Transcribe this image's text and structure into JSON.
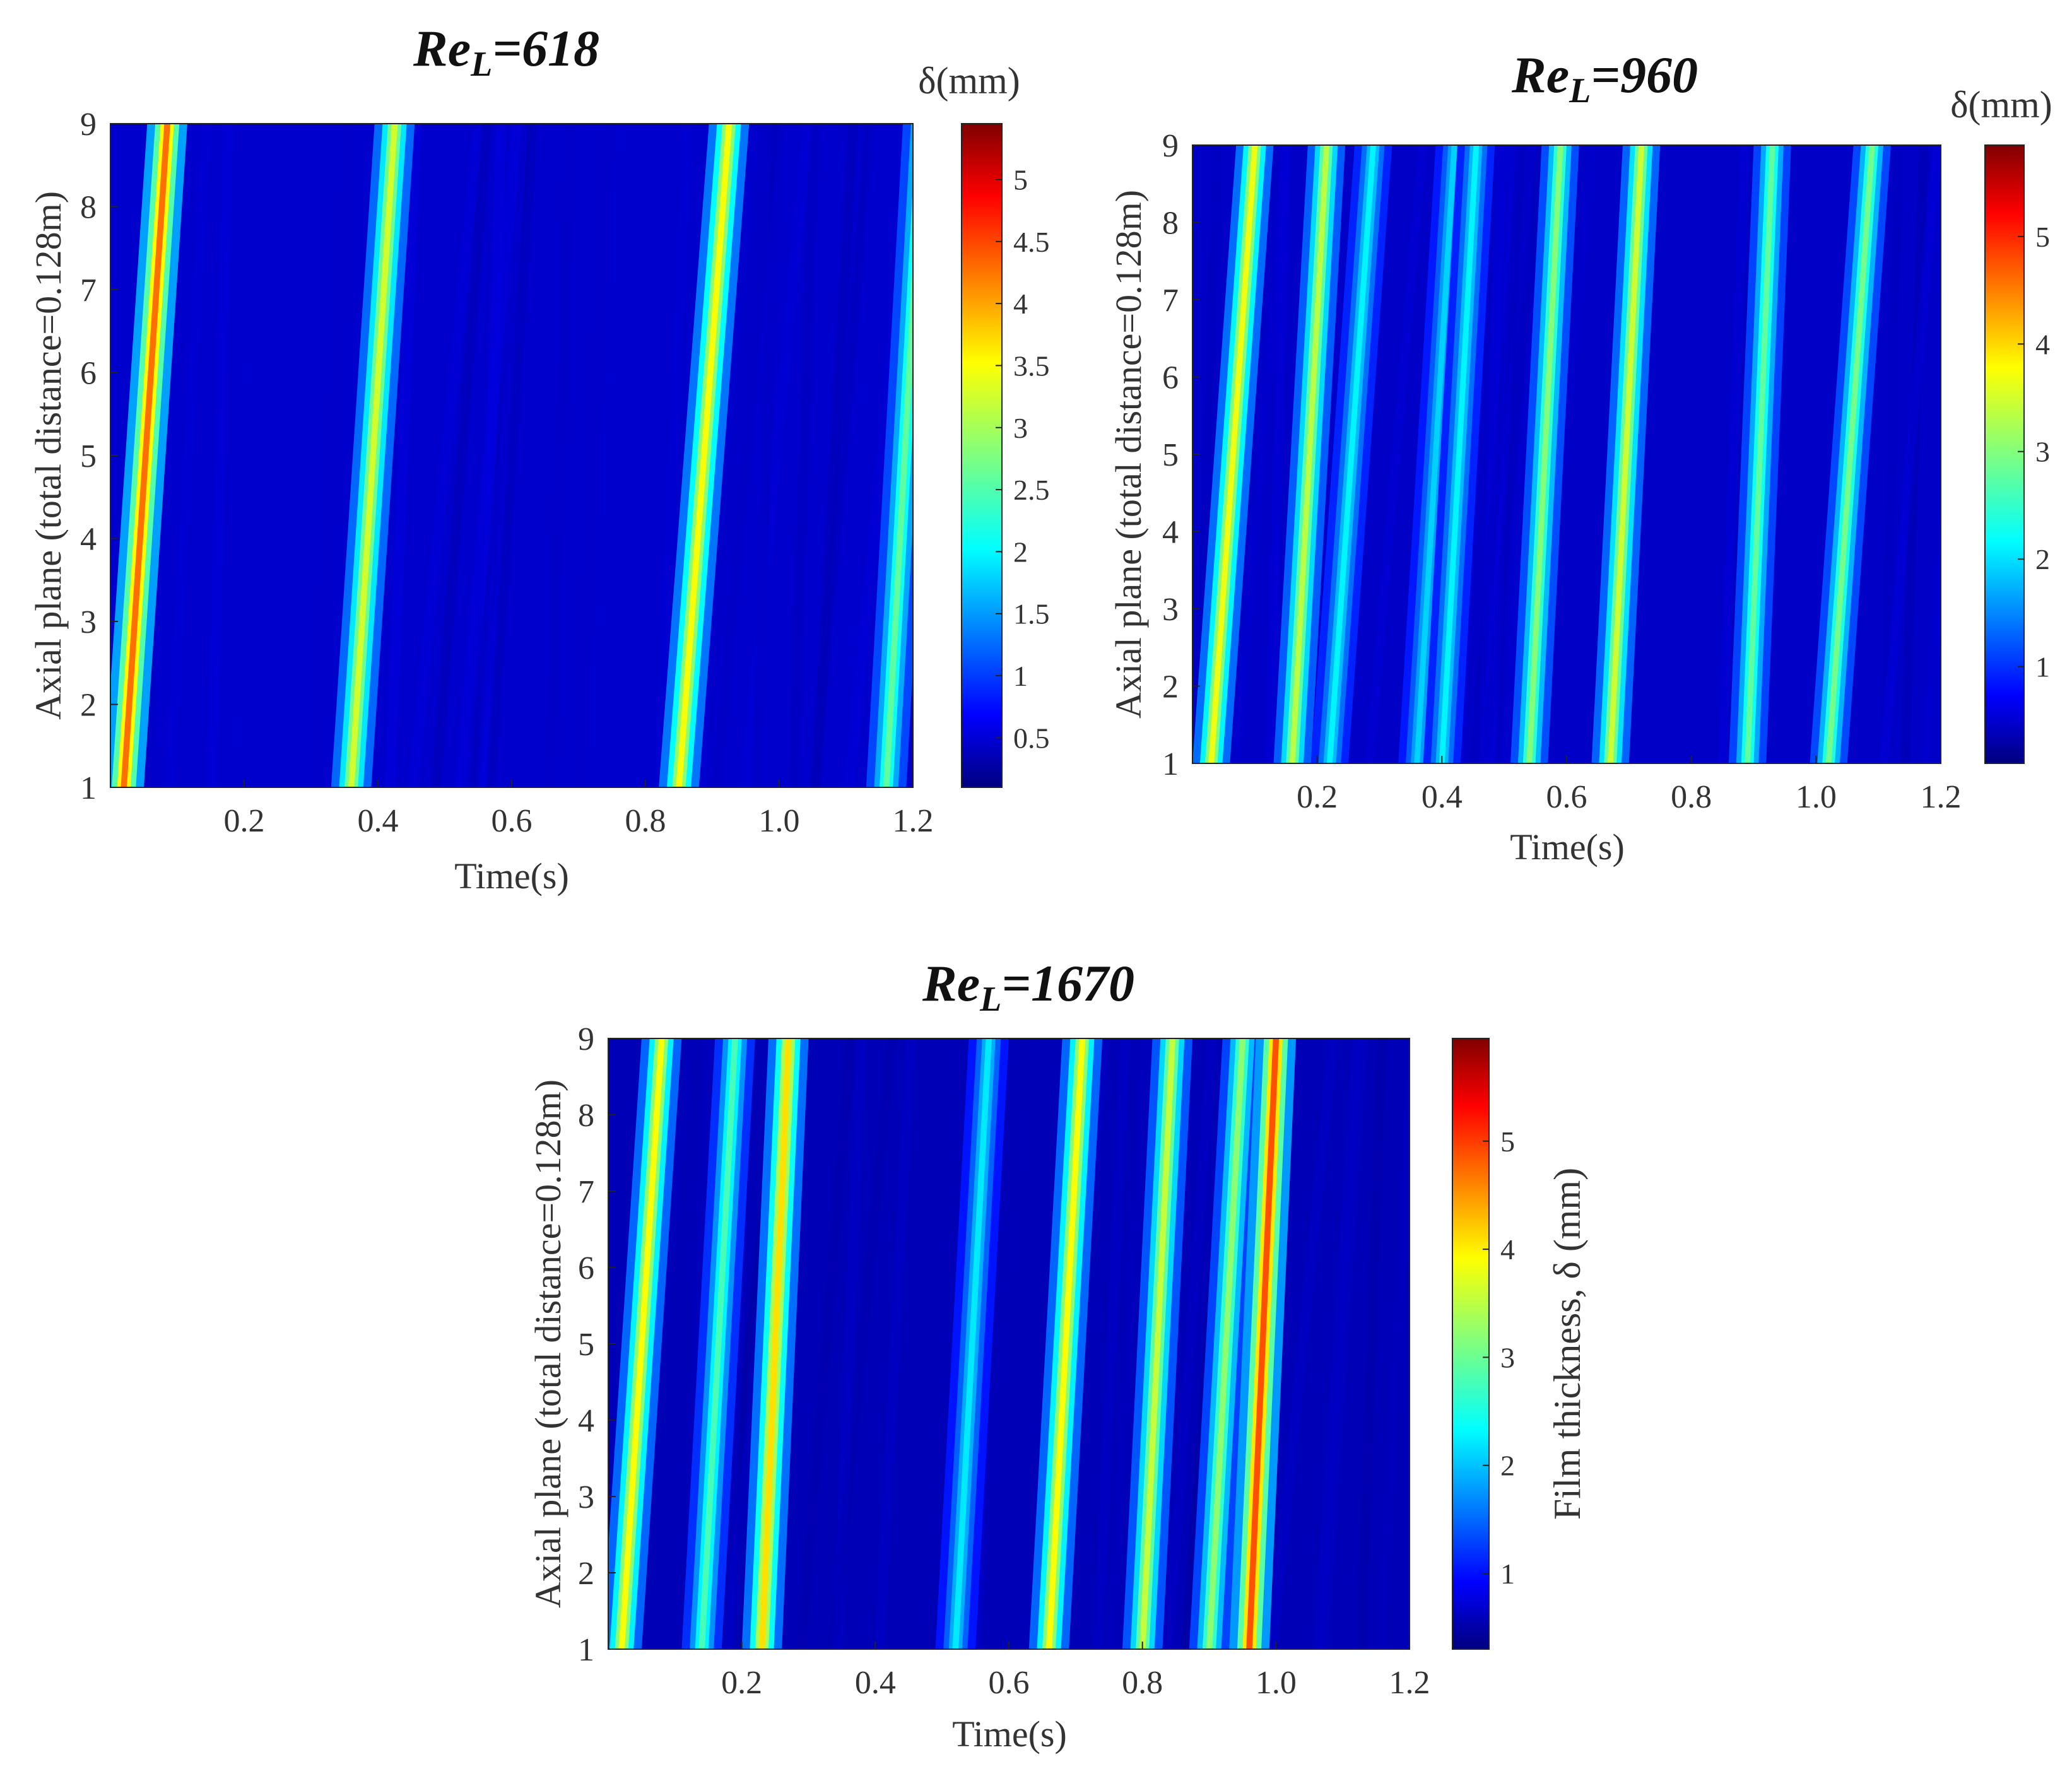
{
  "chart_data": [
    {
      "type": "heatmap",
      "title_prefix": "Re",
      "title_sub": "L",
      "title_value": "=618",
      "xlabel": "Time(s)",
      "ylabel": "Axial plane (total distance=0.128m)",
      "colorbar_label": "δ(mm)",
      "xlim": [
        0,
        1.2
      ],
      "ylim": [
        1,
        9
      ],
      "xticks": [
        "0.2",
        "0.4",
        "0.6",
        "0.8",
        "1.0",
        "1.2"
      ],
      "yticks": [
        "1",
        "2",
        "3",
        "4",
        "5",
        "6",
        "7",
        "8",
        "9"
      ],
      "clim": [
        0.1,
        5.45
      ],
      "cbticks": [
        "0.5",
        "1",
        "1.5",
        "2",
        "2.5",
        "3",
        "3.5",
        "4",
        "4.5",
        "5"
      ],
      "colormap": "jet",
      "background_level": 0.5,
      "streaks": [
        {
          "t_bottom": 0.02,
          "t_top": 0.085,
          "peak": 4.2
        },
        {
          "t_bottom": 0.36,
          "t_top": 0.425,
          "peak": 3.2
        },
        {
          "t_bottom": 0.85,
          "t_top": 0.925,
          "peak": 3.4
        },
        {
          "t_bottom": 1.16,
          "t_top": 1.215,
          "peak": 2.6
        }
      ]
    },
    {
      "type": "heatmap",
      "title_prefix": "Re",
      "title_sub": "L",
      "title_value": "=960",
      "xlabel": "Time(s)",
      "ylabel": "Axial plane (total distance=0.128m)",
      "colorbar_label": "δ(mm)",
      "xlim": [
        0,
        1.2
      ],
      "ylim": [
        1,
        9
      ],
      "xticks": [
        "0.2",
        "0.4",
        "0.6",
        "0.8",
        "1.0",
        "1.2"
      ],
      "yticks": [
        "1",
        "2",
        "3",
        "4",
        "5",
        "6",
        "7",
        "8",
        "9"
      ],
      "clim": [
        0.1,
        5.85
      ],
      "cbticks": [
        "1",
        "2",
        "3",
        "4",
        "5"
      ],
      "colormap": "jet",
      "background_level": 0.5,
      "streaks": [
        {
          "t_bottom": 0.03,
          "t_top": 0.1,
          "peak": 3.6
        },
        {
          "t_bottom": 0.16,
          "t_top": 0.215,
          "peak": 3.3
        },
        {
          "t_bottom": 0.22,
          "t_top": 0.29,
          "peak": 2.2
        },
        {
          "t_bottom": 0.36,
          "t_top": 0.42,
          "peak": 2.0
        },
        {
          "t_bottom": 0.4,
          "t_top": 0.455,
          "peak": 2.2
        },
        {
          "t_bottom": 0.54,
          "t_top": 0.59,
          "peak": 3.0
        },
        {
          "t_bottom": 0.67,
          "t_top": 0.72,
          "peak": 3.4
        },
        {
          "t_bottom": 0.89,
          "t_top": 0.93,
          "peak": 2.8
        },
        {
          "t_bottom": 1.02,
          "t_top": 1.09,
          "peak": 2.9
        }
      ]
    },
    {
      "type": "heatmap",
      "title_prefix": "Re",
      "title_sub": "L",
      "title_value": "=1670",
      "xlabel": "Time(s)",
      "ylabel": "Axial plane (total distance=0.128m)",
      "colorbar_label": "Film thickness, δ (mm)",
      "xlim": [
        0,
        1.2
      ],
      "ylim": [
        1,
        9
      ],
      "xticks": [
        "0.2",
        "0.4",
        "0.6",
        "0.8",
        "1.0",
        "1.2"
      ],
      "yticks": [
        "1",
        "2",
        "3",
        "4",
        "5",
        "6",
        "7",
        "8",
        "9"
      ],
      "clim": [
        0.3,
        5.95
      ],
      "cbticks": [
        "1",
        "2",
        "3",
        "4",
        "5"
      ],
      "colormap": "jet",
      "background_level": 0.6,
      "streaks": [
        {
          "t_bottom": 0.02,
          "t_top": 0.08,
          "peak": 3.8
        },
        {
          "t_bottom": 0.14,
          "t_top": 0.19,
          "peak": 2.8
        },
        {
          "t_bottom": 0.23,
          "t_top": 0.27,
          "peak": 4.0
        },
        {
          "t_bottom": 0.52,
          "t_top": 0.57,
          "peak": 2.3
        },
        {
          "t_bottom": 0.66,
          "t_top": 0.71,
          "peak": 3.8
        },
        {
          "t_bottom": 0.8,
          "t_top": 0.845,
          "peak": 3.5
        },
        {
          "t_bottom": 0.9,
          "t_top": 0.95,
          "peak": 3.2
        },
        {
          "t_bottom": 0.96,
          "t_top": 1.0,
          "peak": 4.8
        }
      ]
    }
  ]
}
